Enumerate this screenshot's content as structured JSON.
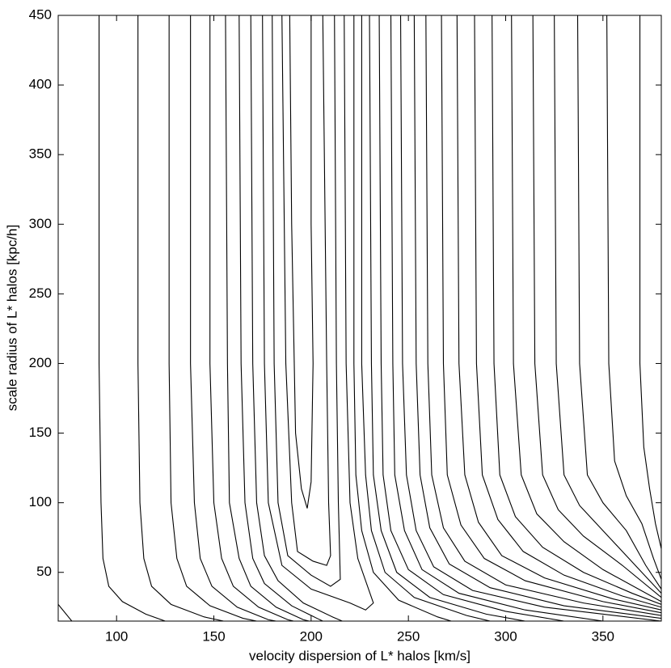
{
  "chart_data": {
    "type": "contour",
    "xlabel": "velocity dispersion of L* halos [km/s]",
    "ylabel": "scale radius of L* halos [kpc/h]",
    "xlim": [
      70,
      380
    ],
    "ylim": [
      15,
      450
    ],
    "xticks": [
      100,
      150,
      200,
      250,
      300,
      350
    ],
    "yticks": [
      50,
      100,
      150,
      200,
      250,
      300,
      350,
      400,
      450
    ],
    "color": "#000000",
    "series": [
      {
        "x": [
          70,
          77
        ],
        "y": [
          27,
          15
        ]
      },
      {
        "x": [
          91,
          91,
          92,
          93,
          96,
          103,
          115,
          125
        ],
        "y": [
          450,
          200,
          100,
          60,
          40,
          29,
          20,
          15
        ]
      },
      {
        "x": [
          111,
          111,
          112,
          114,
          118,
          128,
          145,
          155
        ],
        "y": [
          450,
          200,
          100,
          60,
          40,
          27,
          18,
          15
        ]
      },
      {
        "x": [
          127,
          127,
          128,
          131,
          136,
          148,
          165,
          172
        ],
        "y": [
          450,
          200,
          100,
          60,
          40,
          26,
          17,
          15
        ]
      },
      {
        "x": [
          138,
          138,
          140,
          143,
          149,
          162,
          178,
          182
        ],
        "y": [
          450,
          200,
          100,
          60,
          40,
          25,
          16,
          15
        ]
      },
      {
        "x": [
          148,
          148,
          150,
          154,
          160,
          173,
          188,
          191
        ],
        "y": [
          450,
          200,
          100,
          60,
          40,
          25,
          16,
          15
        ]
      },
      {
        "x": [
          156,
          157,
          158,
          163,
          169,
          182,
          196,
          199
        ],
        "y": [
          450,
          200,
          100,
          60,
          40,
          25,
          16,
          15
        ]
      },
      {
        "x": [
          163,
          164,
          166,
          170,
          176,
          190,
          203,
          206
        ],
        "y": [
          450,
          200,
          100,
          60,
          42,
          26,
          17,
          15
        ]
      },
      {
        "x": [
          169,
          170,
          172,
          176,
          183,
          196,
          211,
          216
        ],
        "y": [
          450,
          200,
          100,
          62,
          44,
          28,
          18,
          15
        ]
      },
      {
        "x": [
          175,
          176,
          178,
          185,
          200,
          220,
          228,
          232,
          224,
          220,
          218,
          217
        ],
        "y": [
          450,
          200,
          100,
          55,
          38,
          28,
          23,
          28,
          60,
          100,
          200,
          450
        ]
      },
      {
        "x": [
          180,
          181,
          183,
          188,
          200,
          210,
          215,
          214,
          213,
          212
        ],
        "y": [
          450,
          200,
          100,
          62,
          48,
          40,
          45,
          100,
          200,
          450
        ]
      },
      {
        "x": [
          185,
          187,
          190,
          193,
          201,
          208,
          210,
          209,
          208,
          206
        ],
        "y": [
          450,
          200,
          100,
          65,
          58,
          55,
          62,
          100,
          200,
          450
        ]
      },
      {
        "x": [
          189,
          190,
          192,
          195,
          198,
          200,
          201,
          200,
          200
        ],
        "y": [
          450,
          300,
          150,
          110,
          96,
          115,
          200,
          300,
          450
        ]
      },
      {
        "x": [
          222,
          222,
          223,
          226,
          232,
          245,
          265,
          272
        ],
        "y": [
          450,
          200,
          120,
          80,
          50,
          30,
          18,
          15
        ]
      },
      {
        "x": [
          226,
          226,
          228,
          231,
          238,
          253,
          280,
          292
        ],
        "y": [
          450,
          200,
          120,
          80,
          50,
          32,
          19,
          15
        ]
      },
      {
        "x": [
          230,
          231,
          232,
          236,
          244,
          261,
          290,
          310
        ],
        "y": [
          450,
          200,
          120,
          80,
          50,
          32,
          20,
          15
        ]
      },
      {
        "x": [
          235,
          236,
          237,
          241,
          250,
          268,
          300,
          330
        ],
        "y": [
          450,
          200,
          120,
          80,
          52,
          34,
          22,
          15
        ]
      },
      {
        "x": [
          241,
          242,
          243,
          248,
          257,
          276,
          310,
          350
        ],
        "y": [
          450,
          200,
          120,
          80,
          52,
          35,
          23,
          15
        ]
      },
      {
        "x": [
          246,
          247,
          249,
          254,
          263,
          283,
          320,
          380
        ],
        "y": [
          450,
          200,
          120,
          80,
          54,
          37,
          25,
          15
        ]
      },
      {
        "x": [
          253,
          254,
          256,
          261,
          271,
          292,
          330,
          380
        ],
        "y": [
          450,
          200,
          120,
          82,
          56,
          39,
          26,
          17
        ]
      },
      {
        "x": [
          259,
          260,
          262,
          268,
          279,
          300,
          340,
          380
        ],
        "y": [
          450,
          200,
          120,
          82,
          58,
          41,
          28,
          19
        ]
      },
      {
        "x": [
          267,
          268,
          270,
          277,
          289,
          310,
          350,
          380
        ],
        "y": [
          450,
          200,
          120,
          84,
          60,
          44,
          29,
          21
        ]
      },
      {
        "x": [
          275,
          276,
          279,
          286,
          298,
          320,
          355,
          380
        ],
        "y": [
          450,
          200,
          120,
          86,
          62,
          46,
          31,
          23
        ]
      },
      {
        "x": [
          284,
          285,
          288,
          296,
          309,
          330,
          360,
          380
        ],
        "y": [
          450,
          200,
          120,
          88,
          65,
          48,
          33,
          25
        ]
      },
      {
        "x": [
          293,
          294,
          297,
          305,
          319,
          340,
          365,
          380
        ],
        "y": [
          450,
          200,
          120,
          90,
          68,
          50,
          35,
          27
        ]
      },
      {
        "x": [
          303,
          304,
          308,
          316,
          330,
          350,
          380
        ],
        "y": [
          450,
          200,
          120,
          92,
          72,
          52,
          29
        ]
      },
      {
        "x": [
          314,
          315,
          319,
          327,
          340,
          360,
          380
        ],
        "y": [
          450,
          200,
          120,
          95,
          76,
          55,
          32
        ]
      },
      {
        "x": [
          325,
          326,
          330,
          338,
          350,
          370,
          380
        ],
        "y": [
          450,
          200,
          120,
          98,
          80,
          50,
          35
        ]
      },
      {
        "x": [
          337,
          338,
          342,
          350,
          362,
          372,
          380
        ],
        "y": [
          450,
          200,
          120,
          100,
          80,
          55,
          38
        ]
      },
      {
        "x": [
          352,
          353,
          356,
          362,
          370,
          376,
          380
        ],
        "y": [
          450,
          200,
          130,
          105,
          85,
          60,
          45
        ]
      },
      {
        "x": [
          369,
          369,
          371,
          374,
          377,
          380
        ],
        "y": [
          450,
          200,
          140,
          110,
          85,
          67
        ]
      }
    ]
  }
}
